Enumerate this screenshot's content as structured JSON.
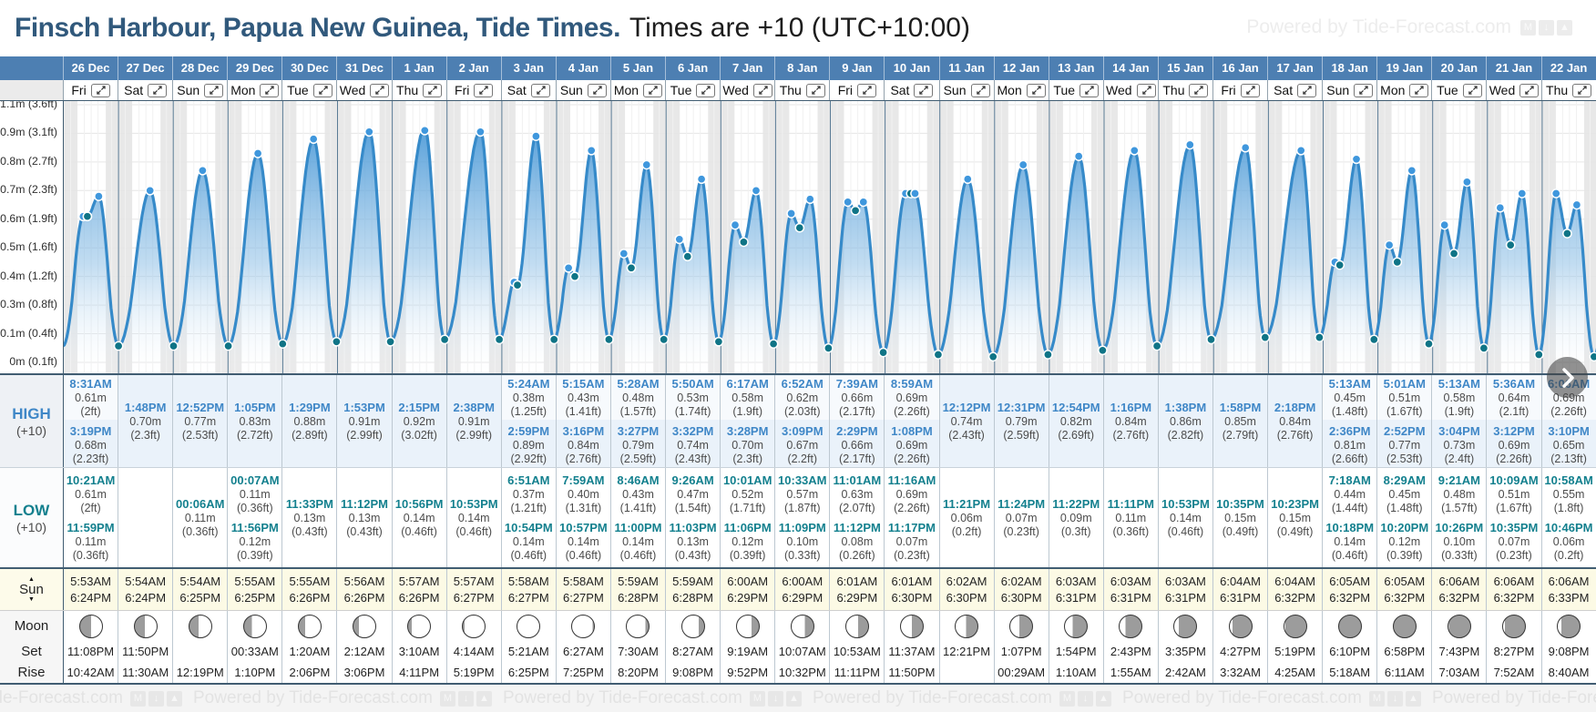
{
  "header": {
    "title": "Finsch Harbour, Papua New Guinea, Tide Times.",
    "subtitle": "Times are +10 (UTC+10:00)",
    "watermark": "Powered by Tide-Forecast.com"
  },
  "row_labels": {
    "high": "HIGH",
    "high_tz": "(+10)",
    "low": "LOW",
    "low_tz": "(+10)",
    "sun": "Sun",
    "moon": "Moon",
    "set": "Set",
    "rise": "Rise"
  },
  "colors": {
    "header_blue": "#4d7fb2",
    "title_color": "#31597c",
    "high_accent": "#3f87c7",
    "low_accent": "#13808e",
    "high_row_bg": "#eaf2fa",
    "sun_row_bg": "#fcfae5",
    "curve_stroke": "#368ac9",
    "high_dot": "#3f97dd",
    "low_dot": "#0f7486",
    "night_stripe": "#e8e8e8"
  },
  "y_axis": {
    "labels": [
      "1.1m (3.6ft)",
      "0.9m (3.1ft)",
      "0.8m (2.7ft)",
      "0.7m (2.3ft)",
      "0.6m (1.9ft)",
      "0.5m (1.6ft)",
      "0.4m (1.2ft)",
      "0.3m (0.8ft)",
      "0.1m (0.4ft)",
      "0m (0.1ft)"
    ]
  },
  "chart_data": {
    "type": "area",
    "title": "Tide height curve, 26 Dec - 22 Jan",
    "y_axis_labels": [
      "1.1m (3.6ft)",
      "0.9m (3.1ft)",
      "0.8m (2.7ft)",
      "0.7m (2.3ft)",
      "0.6m (1.9ft)",
      "0.5m (1.6ft)",
      "0.4m (1.2ft)",
      "0.3m (0.8ft)",
      "0.1m (0.4ft)",
      "0m (0.1ft)"
    ],
    "night_shading_hours": [
      [
        0,
        6
      ],
      [
        18.4,
        24
      ]
    ],
    "series_note": "High/low extremes per day are in days[].highs and days[].lows (time, height_m); curve is cosine interpolation between consecutive extremes, high points marked with blue dots, low points with teal dots"
  },
  "days": [
    {
      "date": "26 Dec",
      "weekday": "Fri",
      "sunrise": "5:53AM",
      "sunset": "6:24PM",
      "moon": {
        "dark_side": "left",
        "dark_pct": 50
      },
      "moonset": "11:08PM",
      "moonrise": "10:42AM",
      "highs": [
        {
          "time": "8:31AM",
          "height_m": "0.61m",
          "height_ft": "(2ft)"
        },
        {
          "time": "3:19PM",
          "height_m": "0.68m",
          "height_ft": "(2.23ft)"
        }
      ],
      "lows": [
        {
          "time": "10:21AM",
          "height_m": "0.61m",
          "height_ft": "(2ft)"
        },
        {
          "time": "11:59PM",
          "height_m": "0.11m",
          "height_ft": "(0.36ft)"
        }
      ]
    },
    {
      "date": "27 Dec",
      "weekday": "Sat",
      "sunrise": "5:54AM",
      "sunset": "6:24PM",
      "moon": {
        "dark_side": "left",
        "dark_pct": 46
      },
      "moonset": "11:50PM",
      "moonrise": "11:30AM",
      "highs": [
        {
          "time": "1:48PM",
          "height_m": "0.70m",
          "height_ft": "(2.3ft)"
        }
      ],
      "lows": []
    },
    {
      "date": "28 Dec",
      "weekday": "Sun",
      "sunrise": "5:54AM",
      "sunset": "6:25PM",
      "moon": {
        "dark_side": "left",
        "dark_pct": 41
      },
      "moonset": "",
      "moonrise": "12:19PM",
      "highs": [
        {
          "time": "12:52PM",
          "height_m": "0.77m",
          "height_ft": "(2.53ft)"
        }
      ],
      "lows": [
        {
          "time": "00:06AM",
          "height_m": "0.11m",
          "height_ft": "(0.36ft)"
        }
      ]
    },
    {
      "date": "29 Dec",
      "weekday": "Mon",
      "sunrise": "5:55AM",
      "sunset": "6:25PM",
      "moon": {
        "dark_side": "left",
        "dark_pct": 36
      },
      "moonset": "00:33AM",
      "moonrise": "1:10PM",
      "highs": [
        {
          "time": "1:05PM",
          "height_m": "0.83m",
          "height_ft": "(2.72ft)"
        }
      ],
      "lows": [
        {
          "time": "00:07AM",
          "height_m": "0.11m",
          "height_ft": "(0.36ft)"
        },
        {
          "time": "11:56PM",
          "height_m": "0.12m",
          "height_ft": "(0.39ft)"
        }
      ]
    },
    {
      "date": "30 Dec",
      "weekday": "Tue",
      "sunrise": "5:55AM",
      "sunset": "6:26PM",
      "moon": {
        "dark_side": "left",
        "dark_pct": 30
      },
      "moonset": "1:20AM",
      "moonrise": "2:06PM",
      "highs": [
        {
          "time": "1:29PM",
          "height_m": "0.88m",
          "height_ft": "(2.89ft)"
        }
      ],
      "lows": [
        {
          "time": "11:33PM",
          "height_m": "0.13m",
          "height_ft": "(0.43ft)"
        }
      ]
    },
    {
      "date": "31 Dec",
      "weekday": "Wed",
      "sunrise": "5:56AM",
      "sunset": "6:26PM",
      "moon": {
        "dark_side": "left",
        "dark_pct": 24
      },
      "moonset": "2:12AM",
      "moonrise": "3:06PM",
      "highs": [
        {
          "time": "1:53PM",
          "height_m": "0.91m",
          "height_ft": "(2.99ft)"
        }
      ],
      "lows": [
        {
          "time": "11:12PM",
          "height_m": "0.13m",
          "height_ft": "(0.43ft)"
        }
      ]
    },
    {
      "date": "1 Jan",
      "weekday": "Thu",
      "sunrise": "5:57AM",
      "sunset": "6:26PM",
      "moon": {
        "dark_side": "left",
        "dark_pct": 16
      },
      "moonset": "3:10AM",
      "moonrise": "4:11PM",
      "highs": [
        {
          "time": "2:15PM",
          "height_m": "0.92m",
          "height_ft": "(3.02ft)"
        }
      ],
      "lows": [
        {
          "time": "10:56PM",
          "height_m": "0.14m",
          "height_ft": "(0.46ft)"
        }
      ]
    },
    {
      "date": "2 Jan",
      "weekday": "Fri",
      "sunrise": "5:57AM",
      "sunset": "6:27PM",
      "moon": {
        "dark_side": "left",
        "dark_pct": 8
      },
      "moonset": "4:14AM",
      "moonrise": "5:19PM",
      "highs": [
        {
          "time": "2:38PM",
          "height_m": "0.91m",
          "height_ft": "(2.99ft)"
        }
      ],
      "lows": [
        {
          "time": "10:53PM",
          "height_m": "0.14m",
          "height_ft": "(0.46ft)"
        }
      ]
    },
    {
      "date": "3 Jan",
      "weekday": "Sat",
      "sunrise": "5:58AM",
      "sunset": "6:27PM",
      "moon": {
        "dark_side": "left",
        "dark_pct": 0
      },
      "moonset": "5:21AM",
      "moonrise": "6:25PM",
      "highs": [
        {
          "time": "5:24AM",
          "height_m": "0.38m",
          "height_ft": "(1.25ft)"
        },
        {
          "time": "2:59PM",
          "height_m": "0.89m",
          "height_ft": "(2.92ft)"
        }
      ],
      "lows": [
        {
          "time": "6:51AM",
          "height_m": "0.37m",
          "height_ft": "(1.21ft)"
        },
        {
          "time": "10:54PM",
          "height_m": "0.14m",
          "height_ft": "(0.46ft)"
        }
      ]
    },
    {
      "date": "4 Jan",
      "weekday": "Sun",
      "sunrise": "5:58AM",
      "sunset": "6:27PM",
      "moon": {
        "dark_side": "right",
        "dark_pct": 6
      },
      "moonset": "6:27AM",
      "moonrise": "7:25PM",
      "highs": [
        {
          "time": "5:15AM",
          "height_m": "0.43m",
          "height_ft": "(1.41ft)"
        },
        {
          "time": "3:16PM",
          "height_m": "0.84m",
          "height_ft": "(2.76ft)"
        }
      ],
      "lows": [
        {
          "time": "7:59AM",
          "height_m": "0.40m",
          "height_ft": "(1.31ft)"
        },
        {
          "time": "10:57PM",
          "height_m": "0.14m",
          "height_ft": "(0.46ft)"
        }
      ]
    },
    {
      "date": "5 Jan",
      "weekday": "Mon",
      "sunrise": "5:59AM",
      "sunset": "6:28PM",
      "moon": {
        "dark_side": "right",
        "dark_pct": 15
      },
      "moonset": "7:30AM",
      "moonrise": "8:20PM",
      "highs": [
        {
          "time": "5:28AM",
          "height_m": "0.48m",
          "height_ft": "(1.57ft)"
        },
        {
          "time": "3:27PM",
          "height_m": "0.79m",
          "height_ft": "(2.59ft)"
        }
      ],
      "lows": [
        {
          "time": "8:46AM",
          "height_m": "0.43m",
          "height_ft": "(1.41ft)"
        },
        {
          "time": "11:00PM",
          "height_m": "0.14m",
          "height_ft": "(0.46ft)"
        }
      ]
    },
    {
      "date": "6 Jan",
      "weekday": "Tue",
      "sunrise": "5:59AM",
      "sunset": "6:28PM",
      "moon": {
        "dark_side": "right",
        "dark_pct": 25
      },
      "moonset": "8:27AM",
      "moonrise": "9:08PM",
      "highs": [
        {
          "time": "5:50AM",
          "height_m": "0.53m",
          "height_ft": "(1.74ft)"
        },
        {
          "time": "3:32PM",
          "height_m": "0.74m",
          "height_ft": "(2.43ft)"
        }
      ],
      "lows": [
        {
          "time": "9:26AM",
          "height_m": "0.47m",
          "height_ft": "(1.54ft)"
        },
        {
          "time": "11:03PM",
          "height_m": "0.13m",
          "height_ft": "(0.43ft)"
        }
      ]
    },
    {
      "date": "7 Jan",
      "weekday": "Wed",
      "sunrise": "6:00AM",
      "sunset": "6:29PM",
      "moon": {
        "dark_side": "right",
        "dark_pct": 33
      },
      "moonset": "9:19AM",
      "moonrise": "9:52PM",
      "highs": [
        {
          "time": "6:17AM",
          "height_m": "0.58m",
          "height_ft": "(1.9ft)"
        },
        {
          "time": "3:28PM",
          "height_m": "0.70m",
          "height_ft": "(2.3ft)"
        }
      ],
      "lows": [
        {
          "time": "10:01AM",
          "height_m": "0.52m",
          "height_ft": "(1.71ft)"
        },
        {
          "time": "11:06PM",
          "height_m": "0.12m",
          "height_ft": "(0.39ft)"
        }
      ]
    },
    {
      "date": "8 Jan",
      "weekday": "Thu",
      "sunrise": "6:00AM",
      "sunset": "6:29PM",
      "moon": {
        "dark_side": "right",
        "dark_pct": 40
      },
      "moonset": "10:07AM",
      "moonrise": "10:32PM",
      "highs": [
        {
          "time": "6:52AM",
          "height_m": "0.62m",
          "height_ft": "(2.03ft)"
        },
        {
          "time": "3:09PM",
          "height_m": "0.67m",
          "height_ft": "(2.2ft)"
        }
      ],
      "lows": [
        {
          "time": "10:33AM",
          "height_m": "0.57m",
          "height_ft": "(1.87ft)"
        },
        {
          "time": "11:09PM",
          "height_m": "0.10m",
          "height_ft": "(0.33ft)"
        }
      ]
    },
    {
      "date": "9 Jan",
      "weekday": "Fri",
      "sunrise": "6:01AM",
      "sunset": "6:29PM",
      "moon": {
        "dark_side": "right",
        "dark_pct": 46
      },
      "moonset": "10:53AM",
      "moonrise": "11:11PM",
      "highs": [
        {
          "time": "7:39AM",
          "height_m": "0.66m",
          "height_ft": "(2.17ft)"
        },
        {
          "time": "2:29PM",
          "height_m": "0.66m",
          "height_ft": "(2.17ft)"
        }
      ],
      "lows": [
        {
          "time": "11:01AM",
          "height_m": "0.63m",
          "height_ft": "(2.07ft)"
        },
        {
          "time": "11:12PM",
          "height_m": "0.08m",
          "height_ft": "(0.26ft)"
        }
      ]
    },
    {
      "date": "10 Jan",
      "weekday": "Sat",
      "sunrise": "6:01AM",
      "sunset": "6:30PM",
      "moon": {
        "dark_side": "right",
        "dark_pct": 50
      },
      "moonset": "11:37AM",
      "moonrise": "11:50PM",
      "highs": [
        {
          "time": "8:59AM",
          "height_m": "0.69m",
          "height_ft": "(2.26ft)"
        },
        {
          "time": "1:08PM",
          "height_m": "0.69m",
          "height_ft": "(2.26ft)"
        }
      ],
      "lows": [
        {
          "time": "11:16AM",
          "height_m": "0.69m",
          "height_ft": "(2.26ft)"
        },
        {
          "time": "11:17PM",
          "height_m": "0.07m",
          "height_ft": "(0.23ft)"
        }
      ]
    },
    {
      "date": "11 Jan",
      "weekday": "Sun",
      "sunrise": "6:02AM",
      "sunset": "6:30PM",
      "moon": {
        "dark_side": "right",
        "dark_pct": 53
      },
      "moonset": "12:21PM",
      "moonrise": "",
      "highs": [
        {
          "time": "12:12PM",
          "height_m": "0.74m",
          "height_ft": "(2.43ft)"
        }
      ],
      "lows": [
        {
          "time": "11:21PM",
          "height_m": "0.06m",
          "height_ft": "(0.2ft)"
        }
      ]
    },
    {
      "date": "12 Jan",
      "weekday": "Mon",
      "sunrise": "6:02AM",
      "sunset": "6:30PM",
      "moon": {
        "dark_side": "right",
        "dark_pct": 58
      },
      "moonset": "1:07PM",
      "moonrise": "00:29AM",
      "highs": [
        {
          "time": "12:31PM",
          "height_m": "0.79m",
          "height_ft": "(2.59ft)"
        }
      ],
      "lows": [
        {
          "time": "11:24PM",
          "height_m": "0.07m",
          "height_ft": "(0.23ft)"
        }
      ]
    },
    {
      "date": "13 Jan",
      "weekday": "Tue",
      "sunrise": "6:03AM",
      "sunset": "6:31PM",
      "moon": {
        "dark_side": "right",
        "dark_pct": 64
      },
      "moonset": "1:54PM",
      "moonrise": "1:10AM",
      "highs": [
        {
          "time": "12:54PM",
          "height_m": "0.82m",
          "height_ft": "(2.69ft)"
        }
      ],
      "lows": [
        {
          "time": "11:22PM",
          "height_m": "0.09m",
          "height_ft": "(0.3ft)"
        }
      ]
    },
    {
      "date": "14 Jan",
      "weekday": "Wed",
      "sunrise": "6:03AM",
      "sunset": "6:31PM",
      "moon": {
        "dark_side": "right",
        "dark_pct": 72
      },
      "moonset": "2:43PM",
      "moonrise": "1:55AM",
      "highs": [
        {
          "time": "1:16PM",
          "height_m": "0.84m",
          "height_ft": "(2.76ft)"
        }
      ],
      "lows": [
        {
          "time": "11:11PM",
          "height_m": "0.11m",
          "height_ft": "(0.36ft)"
        }
      ]
    },
    {
      "date": "15 Jan",
      "weekday": "Thu",
      "sunrise": "6:03AM",
      "sunset": "6:31PM",
      "moon": {
        "dark_side": "right",
        "dark_pct": 80
      },
      "moonset": "3:35PM",
      "moonrise": "2:42AM",
      "highs": [
        {
          "time": "1:38PM",
          "height_m": "0.86m",
          "height_ft": "(2.82ft)"
        }
      ],
      "lows": [
        {
          "time": "10:53PM",
          "height_m": "0.14m",
          "height_ft": "(0.46ft)"
        }
      ]
    },
    {
      "date": "16 Jan",
      "weekday": "Fri",
      "sunrise": "6:04AM",
      "sunset": "6:31PM",
      "moon": {
        "dark_side": "right",
        "dark_pct": 87
      },
      "moonset": "4:27PM",
      "moonrise": "3:32AM",
      "highs": [
        {
          "time": "1:58PM",
          "height_m": "0.85m",
          "height_ft": "(2.79ft)"
        }
      ],
      "lows": [
        {
          "time": "10:35PM",
          "height_m": "0.15m",
          "height_ft": "(0.49ft)"
        }
      ]
    },
    {
      "date": "17 Jan",
      "weekday": "Sat",
      "sunrise": "6:04AM",
      "sunset": "6:32PM",
      "moon": {
        "dark_side": "right",
        "dark_pct": 96
      },
      "moonset": "5:19PM",
      "moonrise": "4:25AM",
      "highs": [
        {
          "time": "2:18PM",
          "height_m": "0.84m",
          "height_ft": "(2.76ft)"
        }
      ],
      "lows": [
        {
          "time": "10:23PM",
          "height_m": "0.15m",
          "height_ft": "(0.49ft)"
        }
      ]
    },
    {
      "date": "18 Jan",
      "weekday": "Sun",
      "sunrise": "6:05AM",
      "sunset": "6:32PM",
      "moon": {
        "dark_side": "right",
        "dark_pct": 100
      },
      "moonset": "6:10PM",
      "moonrise": "5:18AM",
      "highs": [
        {
          "time": "5:13AM",
          "height_m": "0.45m",
          "height_ft": "(1.48ft)"
        },
        {
          "time": "2:36PM",
          "height_m": "0.81m",
          "height_ft": "(2.66ft)"
        }
      ],
      "lows": [
        {
          "time": "7:18AM",
          "height_m": "0.44m",
          "height_ft": "(1.44ft)"
        },
        {
          "time": "10:18PM",
          "height_m": "0.14m",
          "height_ft": "(0.46ft)"
        }
      ]
    },
    {
      "date": "19 Jan",
      "weekday": "Mon",
      "sunrise": "6:05AM",
      "sunset": "6:32PM",
      "moon": {
        "dark_side": "right",
        "dark_pct": 100
      },
      "moonset": "6:58PM",
      "moonrise": "6:11AM",
      "highs": [
        {
          "time": "5:01AM",
          "height_m": "0.51m",
          "height_ft": "(1.67ft)"
        },
        {
          "time": "2:52PM",
          "height_m": "0.77m",
          "height_ft": "(2.53ft)"
        }
      ],
      "lows": [
        {
          "time": "8:29AM",
          "height_m": "0.45m",
          "height_ft": "(1.48ft)"
        },
        {
          "time": "10:20PM",
          "height_m": "0.12m",
          "height_ft": "(0.39ft)"
        }
      ]
    },
    {
      "date": "20 Jan",
      "weekday": "Tue",
      "sunrise": "6:06AM",
      "sunset": "6:32PM",
      "moon": {
        "dark_side": "right",
        "dark_pct": 98
      },
      "moonset": "7:43PM",
      "moonrise": "7:03AM",
      "highs": [
        {
          "time": "5:13AM",
          "height_m": "0.58m",
          "height_ft": "(1.9ft)"
        },
        {
          "time": "3:04PM",
          "height_m": "0.73m",
          "height_ft": "(2.4ft)"
        }
      ],
      "lows": [
        {
          "time": "9:21AM",
          "height_m": "0.48m",
          "height_ft": "(1.57ft)"
        },
        {
          "time": "10:26PM",
          "height_m": "0.10m",
          "height_ft": "(0.33ft)"
        }
      ]
    },
    {
      "date": "21 Jan",
      "weekday": "Wed",
      "sunrise": "6:06AM",
      "sunset": "6:32PM",
      "moon": {
        "dark_side": "right",
        "dark_pct": 91
      },
      "moonset": "8:27PM",
      "moonrise": "7:52AM",
      "highs": [
        {
          "time": "5:36AM",
          "height_m": "0.64m",
          "height_ft": "(2.1ft)"
        },
        {
          "time": "3:12PM",
          "height_m": "0.69m",
          "height_ft": "(2.26ft)"
        }
      ],
      "lows": [
        {
          "time": "10:09AM",
          "height_m": "0.51m",
          "height_ft": "(1.67ft)"
        },
        {
          "time": "10:35PM",
          "height_m": "0.07m",
          "height_ft": "(0.23ft)"
        }
      ]
    },
    {
      "date": "22 Jan",
      "weekday": "Thu",
      "sunrise": "6:06AM",
      "sunset": "6:33PM",
      "moon": {
        "dark_side": "right",
        "dark_pct": 83
      },
      "moonset": "9:08PM",
      "moonrise": "8:40AM",
      "highs": [
        {
          "time": "6:06AM",
          "height_m": "0.69m",
          "height_ft": "(2.26ft)"
        },
        {
          "time": "3:10PM",
          "height_m": "0.65m",
          "height_ft": "(2.13ft)"
        }
      ],
      "lows": [
        {
          "time": "10:58AM",
          "height_m": "0.55m",
          "height_ft": "(1.8ft)"
        },
        {
          "time": "10:46PM",
          "height_m": "0.06m",
          "height_ft": "(0.2ft)"
        }
      ]
    }
  ]
}
